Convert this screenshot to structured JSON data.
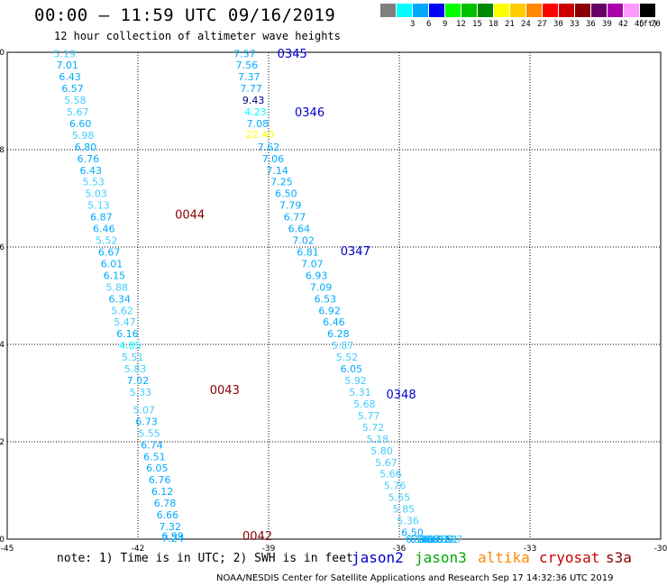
{
  "header": {
    "title": "00:00 – 11:59 UTC 09/16/2019",
    "subtitle": "12 hour collection of altimeter wave heights"
  },
  "legend": {
    "units": "(ft)",
    "bins": [
      {
        "label": "",
        "color": "#7f7f7f"
      },
      {
        "label": "3",
        "color": "#00ffff"
      },
      {
        "label": "6",
        "color": "#00aaff"
      },
      {
        "label": "9",
        "color": "#0000ff"
      },
      {
        "label": "12",
        "color": "#00ff00"
      },
      {
        "label": "15",
        "color": "#00c000"
      },
      {
        "label": "18",
        "color": "#008800"
      },
      {
        "label": "21",
        "color": "#ffff00"
      },
      {
        "label": "24",
        "color": "#ffcc00"
      },
      {
        "label": "27",
        "color": "#ff8800"
      },
      {
        "label": "30",
        "color": "#ff0000"
      },
      {
        "label": "33",
        "color": "#cc0000"
      },
      {
        "label": "36",
        "color": "#880000"
      },
      {
        "label": "39",
        "color": "#660066"
      },
      {
        "label": "42",
        "color": "#aa00aa"
      },
      {
        "label": "45",
        "color": "#ff99ff"
      },
      {
        "label": "70",
        "color": "#000000"
      }
    ]
  },
  "axes": {
    "x_ticks": [
      "-45",
      "-42",
      "-39",
      "-36",
      "-33",
      "-30"
    ],
    "y_ticks": [
      "0",
      "2",
      "4",
      "6",
      "8",
      "10"
    ],
    "x_range": [
      -45,
      -30
    ],
    "y_range": [
      0,
      10
    ]
  },
  "tracks": [
    {
      "id": "track-west",
      "pass_labels": [
        {
          "text": "0044",
          "lat": 6.65,
          "lon": -41.15,
          "color": "#880000"
        },
        {
          "text": "0043",
          "lat": 3.05,
          "lon": -40.35,
          "color": "#880000"
        },
        {
          "text": "0042",
          "lat": 0.05,
          "lon": -39.6,
          "color": "#880000"
        }
      ],
      "points": [
        {
          "v": "5.19",
          "lat": 9.95,
          "lon": -43.68,
          "color": "#44ccff"
        },
        {
          "v": "7.01",
          "lat": 9.72,
          "lon": -43.62,
          "color": "#00aaff"
        },
        {
          "v": "6.43",
          "lat": 9.48,
          "lon": -43.56,
          "color": "#00aaff"
        },
        {
          "v": "6.57",
          "lat": 9.24,
          "lon": -43.5,
          "color": "#00aaff"
        },
        {
          "v": "5.58",
          "lat": 9.0,
          "lon": -43.44,
          "color": "#44ccff"
        },
        {
          "v": "5.67",
          "lat": 8.76,
          "lon": -43.38,
          "color": "#44ccff"
        },
        {
          "v": "6.60",
          "lat": 8.52,
          "lon": -43.32,
          "color": "#00aaff"
        },
        {
          "v": "5.98",
          "lat": 8.28,
          "lon": -43.26,
          "color": "#44ccff"
        },
        {
          "v": "6.80",
          "lat": 8.04,
          "lon": -43.2,
          "color": "#00aaff"
        },
        {
          "v": "6.76",
          "lat": 7.8,
          "lon": -43.14,
          "color": "#00aaff"
        },
        {
          "v": "6.43",
          "lat": 7.56,
          "lon": -43.08,
          "color": "#00aaff"
        },
        {
          "v": "5.53",
          "lat": 7.32,
          "lon": -43.02,
          "color": "#44ccff"
        },
        {
          "v": "5.03",
          "lat": 7.08,
          "lon": -42.96,
          "color": "#44ccff"
        },
        {
          "v": "5.13",
          "lat": 6.84,
          "lon": -42.9,
          "color": "#44ccff"
        },
        {
          "v": "6.87",
          "lat": 6.6,
          "lon": -42.84,
          "color": "#00aaff"
        },
        {
          "v": "6.46",
          "lat": 6.36,
          "lon": -42.78,
          "color": "#00aaff"
        },
        {
          "v": "5.52",
          "lat": 6.12,
          "lon": -42.72,
          "color": "#44ccff"
        },
        {
          "v": "6.67",
          "lat": 5.88,
          "lon": -42.66,
          "color": "#00aaff"
        },
        {
          "v": "6.01",
          "lat": 5.64,
          "lon": -42.6,
          "color": "#00aaff"
        },
        {
          "v": "6.15",
          "lat": 5.4,
          "lon": -42.54,
          "color": "#00aaff"
        },
        {
          "v": "5.88",
          "lat": 5.16,
          "lon": -42.48,
          "color": "#44ccff"
        },
        {
          "v": "6.34",
          "lat": 4.92,
          "lon": -42.42,
          "color": "#00aaff"
        },
        {
          "v": "5.62",
          "lat": 4.68,
          "lon": -42.36,
          "color": "#44ccff"
        },
        {
          "v": "5.47",
          "lat": 4.44,
          "lon": -42.3,
          "color": "#44ccff"
        },
        {
          "v": "6.16",
          "lat": 4.2,
          "lon": -42.24,
          "color": "#00aaff"
        },
        {
          "v": "4.85",
          "lat": 3.96,
          "lon": -42.18,
          "color": "#00ffff"
        },
        {
          "v": "5.51",
          "lat": 3.72,
          "lon": -42.12,
          "color": "#44ccff"
        },
        {
          "v": "5.83",
          "lat": 3.48,
          "lon": -42.06,
          "color": "#44ccff"
        },
        {
          "v": "7.02",
          "lat": 3.24,
          "lon": -42.0,
          "color": "#00aaff"
        },
        {
          "v": "5.33",
          "lat": 3.0,
          "lon": -41.94,
          "color": "#44ccff"
        },
        {
          "v": "5.07",
          "lat": 2.64,
          "lon": -41.86,
          "color": "#44ccff"
        },
        {
          "v": "6.73",
          "lat": 2.4,
          "lon": -41.8,
          "color": "#00aaff"
        },
        {
          "v": "5.55",
          "lat": 2.16,
          "lon": -41.74,
          "color": "#44ccff"
        },
        {
          "v": "6.74",
          "lat": 1.92,
          "lon": -41.68,
          "color": "#00aaff"
        },
        {
          "v": "6.51",
          "lat": 1.68,
          "lon": -41.62,
          "color": "#00aaff"
        },
        {
          "v": "6.05",
          "lat": 1.44,
          "lon": -41.56,
          "color": "#00aaff"
        },
        {
          "v": "6.76",
          "lat": 1.2,
          "lon": -41.5,
          "color": "#00aaff"
        },
        {
          "v": "6.12",
          "lat": 0.96,
          "lon": -41.44,
          "color": "#00aaff"
        },
        {
          "v": "6.78",
          "lat": 0.72,
          "lon": -41.38,
          "color": "#00aaff"
        },
        {
          "v": "6.66",
          "lat": 0.48,
          "lon": -41.32,
          "color": "#00aaff"
        },
        {
          "v": "7.32",
          "lat": 0.24,
          "lon": -41.26,
          "color": "#00aaff"
        },
        {
          "v": "6.99",
          "lat": 0.05,
          "lon": -41.2,
          "color": "#00aaff"
        },
        {
          "v": "7.24",
          "lat": 0.0,
          "lon": -41.2,
          "color": "#00aaff"
        }
      ]
    },
    {
      "id": "track-east",
      "pass_labels": [
        {
          "text": "0345",
          "lat": 9.95,
          "lon": -38.8,
          "color": "#0000cc"
        },
        {
          "text": "0346",
          "lat": 8.75,
          "lon": -38.4,
          "color": "#0000cc"
        },
        {
          "text": "0347",
          "lat": 5.9,
          "lon": -37.35,
          "color": "#0000cc"
        },
        {
          "text": "0348",
          "lat": 2.95,
          "lon": -36.3,
          "color": "#0000cc"
        }
      ],
      "points": [
        {
          "v": "7.57",
          "lat": 9.95,
          "lon": -39.55,
          "color": "#00aaff"
        },
        {
          "v": "7.56",
          "lat": 9.72,
          "lon": -39.5,
          "color": "#00aaff"
        },
        {
          "v": "7.37",
          "lat": 9.48,
          "lon": -39.45,
          "color": "#00aaff"
        },
        {
          "v": "7.77",
          "lat": 9.24,
          "lon": -39.4,
          "color": "#00aaff"
        },
        {
          "v": "9.43",
          "lat": 9.0,
          "lon": -39.35,
          "color": "#000088"
        },
        {
          "v": "4.23",
          "lat": 8.76,
          "lon": -39.3,
          "color": "#00ffff"
        },
        {
          "v": "7.08",
          "lat": 8.52,
          "lon": -39.25,
          "color": "#00aaff"
        },
        {
          "v": "22.40",
          "lat": 8.3,
          "lon": -39.2,
          "color": "#ffff00"
        },
        {
          "v": "7.62",
          "lat": 8.04,
          "lon": -39.0,
          "color": "#00aaff"
        },
        {
          "v": "7.06",
          "lat": 7.8,
          "lon": -38.9,
          "color": "#00aaff"
        },
        {
          "v": "7.14",
          "lat": 7.56,
          "lon": -38.8,
          "color": "#00aaff"
        },
        {
          "v": "7.25",
          "lat": 7.32,
          "lon": -38.7,
          "color": "#00aaff"
        },
        {
          "v": "6.50",
          "lat": 7.08,
          "lon": -38.6,
          "color": "#00aaff"
        },
        {
          "v": "7.79",
          "lat": 6.84,
          "lon": -38.5,
          "color": "#00aaff"
        },
        {
          "v": "6.77",
          "lat": 6.6,
          "lon": -38.4,
          "color": "#00aaff"
        },
        {
          "v": "6.64",
          "lat": 6.36,
          "lon": -38.3,
          "color": "#00aaff"
        },
        {
          "v": "7.02",
          "lat": 6.12,
          "lon": -38.2,
          "color": "#00aaff"
        },
        {
          "v": "6.81",
          "lat": 5.88,
          "lon": -38.1,
          "color": "#00aaff"
        },
        {
          "v": "7.07",
          "lat": 5.64,
          "lon": -38.0,
          "color": "#00aaff"
        },
        {
          "v": "6.93",
          "lat": 5.4,
          "lon": -37.9,
          "color": "#00aaff"
        },
        {
          "v": "7.09",
          "lat": 5.16,
          "lon": -37.8,
          "color": "#00aaff"
        },
        {
          "v": "6.53",
          "lat": 4.92,
          "lon": -37.7,
          "color": "#00aaff"
        },
        {
          "v": "6.92",
          "lat": 4.68,
          "lon": -37.6,
          "color": "#00aaff"
        },
        {
          "v": "6.46",
          "lat": 4.44,
          "lon": -37.5,
          "color": "#00aaff"
        },
        {
          "v": "6.28",
          "lat": 4.2,
          "lon": -37.4,
          "color": "#00aaff"
        },
        {
          "v": "5.87",
          "lat": 3.96,
          "lon": -37.3,
          "color": "#44ccff"
        },
        {
          "v": "5.52",
          "lat": 3.72,
          "lon": -37.2,
          "color": "#44ccff"
        },
        {
          "v": "6.05",
          "lat": 3.48,
          "lon": -37.1,
          "color": "#00aaff"
        },
        {
          "v": "5.92",
          "lat": 3.24,
          "lon": -37.0,
          "color": "#44ccff"
        },
        {
          "v": "5.31",
          "lat": 3.0,
          "lon": -36.9,
          "color": "#44ccff"
        },
        {
          "v": "5.68",
          "lat": 2.76,
          "lon": -36.8,
          "color": "#44ccff"
        },
        {
          "v": "5.77",
          "lat": 2.52,
          "lon": -36.7,
          "color": "#44ccff"
        },
        {
          "v": "5.72",
          "lat": 2.28,
          "lon": -36.6,
          "color": "#44ccff"
        },
        {
          "v": "5.18",
          "lat": 2.04,
          "lon": -36.5,
          "color": "#44ccff"
        },
        {
          "v": "5.80",
          "lat": 1.8,
          "lon": -36.4,
          "color": "#44ccff"
        },
        {
          "v": "5.67",
          "lat": 1.56,
          "lon": -36.3,
          "color": "#44ccff"
        },
        {
          "v": "5.66",
          "lat": 1.32,
          "lon": -36.2,
          "color": "#44ccff"
        },
        {
          "v": "5.76",
          "lat": 1.08,
          "lon": -36.1,
          "color": "#44ccff"
        },
        {
          "v": "5.65",
          "lat": 0.84,
          "lon": -36.0,
          "color": "#44ccff"
        },
        {
          "v": "5.85",
          "lat": 0.6,
          "lon": -35.9,
          "color": "#44ccff"
        },
        {
          "v": "5.36",
          "lat": 0.36,
          "lon": -35.8,
          "color": "#44ccff"
        },
        {
          "v": "6.50",
          "lat": 0.12,
          "lon": -35.7,
          "color": "#00aaff"
        },
        {
          "v": "6.14",
          "lat": -0.12,
          "lon": -35.6,
          "color": "#00aaff"
        },
        {
          "v": "6.16",
          "lat": -0.36,
          "lon": -35.5,
          "color": "#00aaff"
        },
        {
          "v": "5.94",
          "lat": -0.6,
          "lon": -35.4,
          "color": "#44ccff"
        },
        {
          "v": "6.17",
          "lat": -0.84,
          "lon": -35.3,
          "color": "#00aaff"
        },
        {
          "v": "6.51",
          "lat": -1.08,
          "lon": -35.2,
          "color": "#00aaff"
        },
        {
          "v": "6.03",
          "lat": -1.32,
          "lon": -35.1,
          "color": "#00aaff"
        },
        {
          "v": "6.33",
          "lat": -1.56,
          "lon": -35.0,
          "color": "#00aaff"
        },
        {
          "v": "6.51",
          "lat": -1.8,
          "lon": -34.9,
          "color": "#00aaff"
        },
        {
          "v": "5.87",
          "lat": -2.04,
          "lon": -34.8,
          "color": "#44ccff"
        }
      ]
    }
  ],
  "note": "note: 1) Time is in UTC; 2) SWH is in feet",
  "satellites": [
    {
      "name": "jason2",
      "color": "#0000cc"
    },
    {
      "name": "jason3",
      "color": "#00aa00"
    },
    {
      "name": "altika",
      "color": "#ff8800"
    },
    {
      "name": "cryosat",
      "color": "#cc0000"
    },
    {
      "name": "s3a",
      "color": "#880000"
    }
  ],
  "footer": "NOAA/NESDIS Center for Satellite Applications and Research   Sep 17 14:32:36 UTC 2019"
}
